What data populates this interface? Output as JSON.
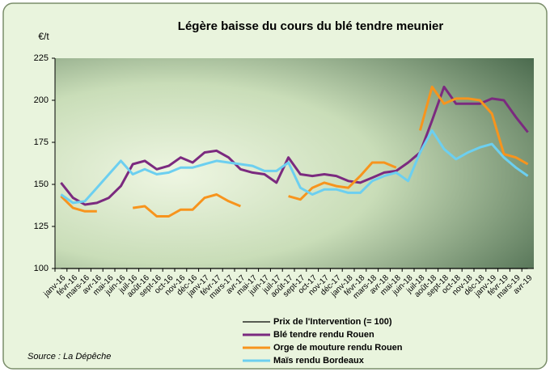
{
  "chart_data": {
    "type": "line",
    "title": "Légère baisse du cours du blé tendre meunier",
    "y_label": "€/t",
    "source": "Source : La Dépêche",
    "categories": [
      "janv-16",
      "févr-16",
      "mars-16",
      "avr-16",
      "mai-16",
      "juin-16",
      "juil-16",
      "août-16",
      "sept-16",
      "oct-16",
      "nov-16",
      "déc-16",
      "janv-17",
      "févr-17",
      "mars-17",
      "avr-17",
      "mai-17",
      "juin-17",
      "juil-17",
      "août-17",
      "sept-17",
      "oct-17",
      "nov-17",
      "déc-17",
      "janv-18",
      "févr-18",
      "mars-18",
      "avr-18",
      "mai-18",
      "juin-18",
      "juil-18",
      "août-18",
      "sept-18",
      "oct-18",
      "nov-18",
      "déc-18",
      "janv-19",
      "févr-19",
      "mars-19",
      "avr-19"
    ],
    "series": [
      {
        "name": "Prix de l'Intervention (= 100)",
        "color": "#000000",
        "width": 1.2,
        "values": [
          100,
          100,
          100,
          100,
          100,
          100,
          100,
          100,
          100,
          100,
          100,
          100,
          100,
          100,
          100,
          100,
          100,
          100,
          100,
          100,
          100,
          100,
          100,
          100,
          100,
          100,
          100,
          100,
          100,
          100,
          100,
          100,
          100,
          100,
          100,
          100,
          100,
          100,
          100,
          100
        ]
      },
      {
        "name": "Blé tendre rendu Rouen",
        "color": "#7b2a7f",
        "width": 3,
        "values": [
          151,
          142,
          138,
          139,
          142,
          149,
          162,
          164,
          159,
          161,
          166,
          163,
          169,
          170,
          166,
          159,
          157,
          156,
          151,
          166,
          156,
          155,
          156,
          155,
          152,
          151,
          154,
          157,
          158,
          163,
          169,
          188,
          208,
          198,
          198,
          198,
          201,
          200,
          190,
          181
        ]
      },
      {
        "name": "Orge de mouture rendu Rouen",
        "color": "#f7941d",
        "width": 3,
        "values": [
          143,
          136,
          134,
          134,
          null,
          null,
          136,
          137,
          131,
          131,
          135,
          135,
          142,
          144,
          140,
          137,
          null,
          null,
          null,
          143,
          141,
          148,
          151,
          149,
          148,
          155,
          163,
          163,
          160,
          null,
          182,
          208,
          198,
          201,
          201,
          200,
          192,
          168,
          166,
          162
        ]
      },
      {
        "name": "Maïs rendu Bordeaux",
        "color": "#6ccff0",
        "width": 3,
        "values": [
          144,
          139,
          140,
          148,
          156,
          164,
          156,
          159,
          156,
          157,
          160,
          160,
          162,
          164,
          163,
          162,
          161,
          158,
          158,
          163,
          148,
          144,
          147,
          147,
          145,
          145,
          152,
          155,
          157,
          152,
          169,
          182,
          171,
          165,
          169,
          172,
          174,
          166,
          160,
          155
        ]
      }
    ],
    "ylim": [
      100,
      225
    ],
    "yticks": [
      100,
      125,
      150,
      175,
      200,
      225
    ]
  }
}
